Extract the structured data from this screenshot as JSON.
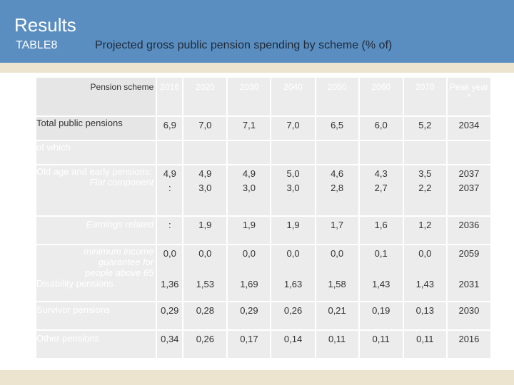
{
  "header": {
    "title": "Results",
    "table_label": "TABLE8",
    "subtitle": "Projected gross public pension spending by scheme (% of)"
  },
  "table": {
    "columns": [
      "Pension scheme",
      "2016",
      "2020",
      "2030",
      "2040",
      "2050",
      "2060",
      "2070",
      "Peak year *"
    ],
    "rows": [
      {
        "label": "Total public pensions",
        "values": [
          "6,9",
          "7,0",
          "7,1",
          "7,0",
          "6,5",
          "6,0",
          "5,2",
          "2034"
        ]
      },
      {
        "label": "of which",
        "values": [
          "",
          "",
          "",
          "",
          "",
          "",
          "",
          ""
        ]
      },
      {
        "label": "Old age and early pensions:",
        "sublabel": "Flat component",
        "values": [
          "4,9",
          "4,9",
          "4,9",
          "5,0",
          "4,6",
          "4,3",
          "3,5",
          "2037"
        ],
        "subvalues": [
          ":",
          "3,0",
          "3,0",
          "3,0",
          "2,8",
          "2,7",
          "2,2",
          "2037"
        ]
      },
      {
        "label": "Earnings related",
        "values": [
          ":",
          "1,9",
          "1,9",
          "1,9",
          "1,7",
          "1,6",
          "1,2",
          "2036"
        ]
      },
      {
        "label": "minimum income guarantee for people above 65",
        "sublabel": "Disability pensions",
        "values": [
          "0,0",
          "0,0",
          "0,0",
          "0,0",
          "0,0",
          "0,1",
          "0,0",
          "2059"
        ],
        "subvalues": [
          "1,36",
          "1,53",
          "1,69",
          "1,63",
          "1,58",
          "1,43",
          "1,43",
          "2031"
        ]
      },
      {
        "label": "Survivor pensions",
        "values": [
          "0,29",
          "0,28",
          "0,29",
          "0,26",
          "0,21",
          "0,19",
          "0,13",
          "2030"
        ]
      },
      {
        "label": "Other pensions",
        "values": [
          "0,34",
          "0,26",
          "0,17",
          "0,14",
          "0,11",
          "0,11",
          "0,11",
          "2016"
        ]
      }
    ]
  }
}
